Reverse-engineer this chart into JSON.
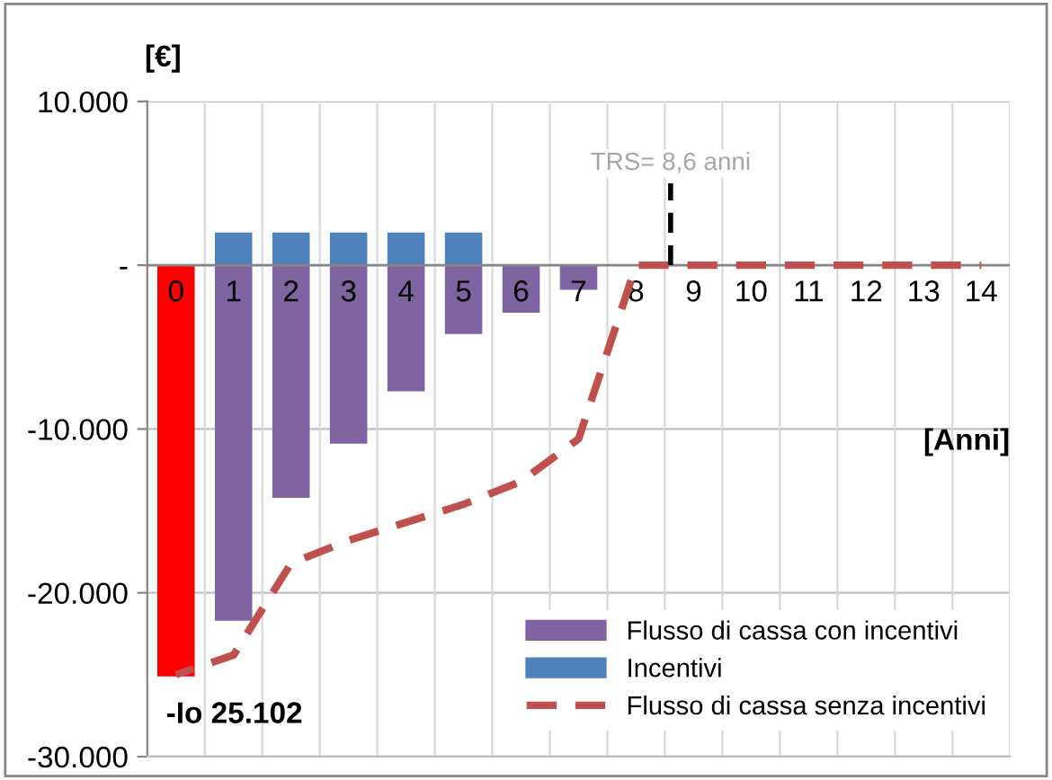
{
  "chart_data": {
    "type": "bar",
    "stacked": true,
    "ylabel": "[€]",
    "xlabel": "[Anni]",
    "x": [
      0,
      1,
      2,
      3,
      4,
      5,
      6,
      7,
      8,
      9,
      10,
      11,
      12,
      13,
      14
    ],
    "xlim": [
      -0.5,
      14.5
    ],
    "xticks": [
      0,
      1,
      2,
      3,
      4,
      5,
      6,
      7,
      8,
      9,
      10,
      11,
      12,
      13,
      14
    ],
    "series": [
      {
        "name": "Flusso di cassa con incentivi",
        "color": "#8064a2",
        "colors": [
          "#ff0000",
          "#8064a2",
          "#8064a2",
          "#8064a2",
          "#8064a2",
          "#8064a2",
          "#8064a2",
          "#8064a2",
          "#8064a2",
          "#8064a2",
          "#8064a2",
          "#8064a2",
          "#8064a2",
          "#8064a2",
          "#8064a2"
        ],
        "values": [
          -25102,
          -21700,
          -14200,
          -10900,
          -7700,
          -4200,
          -2900,
          -1500,
          0,
          0,
          0,
          0,
          0,
          0,
          0
        ]
      },
      {
        "name": "Incentivi",
        "color": "#4f81bd",
        "values": [
          0,
          2000,
          2000,
          2000,
          2000,
          2000,
          0,
          0,
          0,
          0,
          0,
          0,
          0,
          0,
          0
        ]
      },
      {
        "name": "Flusso di cassa senza incentivi",
        "type": "line",
        "line_style": "dashed",
        "color": "#c0504d",
        "values": [
          -25000,
          -23800,
          -18200,
          -16800,
          -15700,
          -14600,
          -13200,
          -10600,
          0,
          0,
          0,
          0,
          0,
          0,
          0
        ]
      }
    ],
    "ylim": [
      -30000,
      10000
    ],
    "yticks": [
      {
        "value": 10000,
        "label": "10.000"
      },
      {
        "value": 0,
        "label": "-"
      },
      {
        "value": -10000,
        "label": "-10.000"
      },
      {
        "value": -20000,
        "label": "-20.000"
      },
      {
        "value": -30000,
        "label": "-30.000"
      }
    ],
    "grid": true,
    "legend": "bottom right",
    "ref_lines": [
      {
        "axis": "x",
        "value": 8.6,
        "label": "TRS= 8,6 anni",
        "color": "#000000",
        "line_style": "dashed"
      }
    ],
    "annotations": [
      {
        "text": "-Io 25.102",
        "x": 0,
        "y": -25102
      }
    ]
  }
}
